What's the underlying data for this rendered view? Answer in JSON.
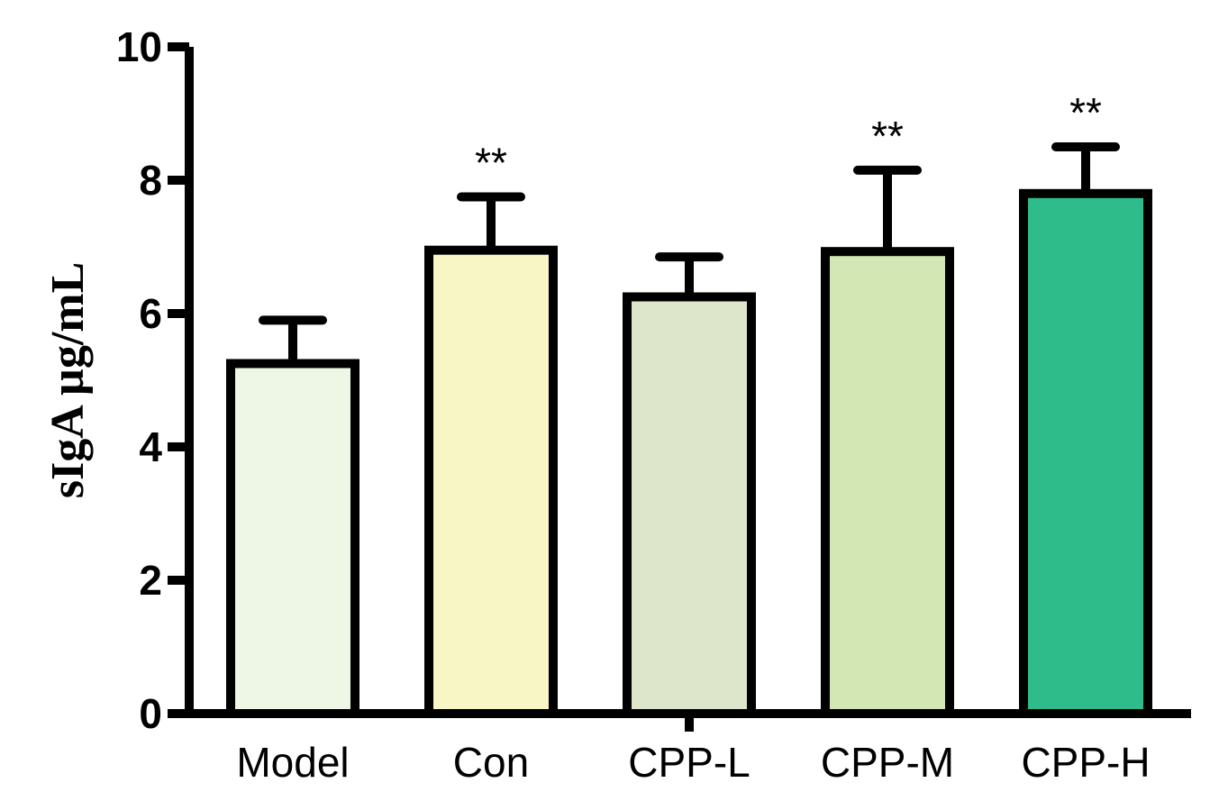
{
  "chart_data": {
    "type": "bar",
    "title": "",
    "xlabel": "",
    "ylabel": "sIgA µg/mL",
    "ylim": [
      0,
      10
    ],
    "yticks": [
      0,
      2,
      4,
      6,
      8,
      10
    ],
    "grid": false,
    "categories": [
      "Model",
      "Con",
      "CPP-L",
      "CPP-M",
      "CPP-H"
    ],
    "values": [
      5.25,
      6.95,
      6.25,
      6.93,
      7.8
    ],
    "error_upper": [
      5.9,
      7.75,
      6.85,
      8.15,
      8.5
    ],
    "significance": [
      "",
      "**",
      "",
      "**",
      "**"
    ],
    "colors": [
      "#EEF7E6",
      "#F7F6C4",
      "#DDE6CB",
      "#D2E7B3",
      "#2EBC8B"
    ],
    "stroke_color": "#000000"
  }
}
